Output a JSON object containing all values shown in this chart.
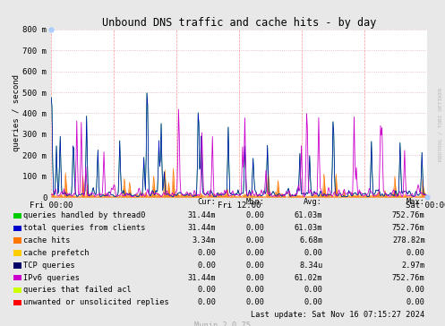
{
  "title": "Unbound DNS traffic and cache hits - by day",
  "ylabel": "queries / second",
  "background_color": "#e8e8e8",
  "plot_background": "#ffffff",
  "ytick_labels": [
    "0",
    "100 m",
    "200 m",
    "300 m",
    "400 m",
    "500 m",
    "600 m",
    "700 m",
    "800 m"
  ],
  "ytick_values": [
    0,
    100,
    200,
    300,
    400,
    500,
    600,
    700,
    800
  ],
  "xtick_labels": [
    "Fri 00:00",
    "Fri 12:00",
    "Sat 00:00"
  ],
  "xtick_positions": [
    0.0,
    0.5,
    1.0
  ],
  "series": [
    {
      "label": "queries handled by thread0",
      "color": "#00cc00"
    },
    {
      "label": "total queries from clients",
      "color": "#0000cc"
    },
    {
      "label": "cache hits",
      "color": "#ff7700"
    },
    {
      "label": "cache prefetch",
      "color": "#ffcc00"
    },
    {
      "label": "TCP queries",
      "color": "#000066"
    },
    {
      "label": "IPv6 queries",
      "color": "#cc00cc"
    },
    {
      "label": "queries that failed acl",
      "color": "#ccff00"
    },
    {
      "label": "unwanted or unsolicited replies",
      "color": "#ff0000"
    }
  ],
  "legend_stats": [
    {
      "cur": "31.44m",
      "min": "0.00",
      "avg": "61.03m",
      "max": "752.76m"
    },
    {
      "cur": "31.44m",
      "min": "0.00",
      "avg": "61.03m",
      "max": "752.76m"
    },
    {
      "cur": "3.34m",
      "min": "0.00",
      "avg": "6.68m",
      "max": "278.82m"
    },
    {
      "cur": "0.00",
      "min": "0.00",
      "avg": "0.00",
      "max": "0.00"
    },
    {
      "cur": "0.00",
      "min": "0.00",
      "avg": "8.34u",
      "max": "2.97m"
    },
    {
      "cur": "31.44m",
      "min": "0.00",
      "avg": "61.02m",
      "max": "752.76m"
    },
    {
      "cur": "0.00",
      "min": "0.00",
      "avg": "0.00",
      "max": "0.00"
    },
    {
      "cur": "0.00",
      "min": "0.00",
      "avg": "0.00",
      "max": "0.00"
    }
  ],
  "last_update": "Last update: Sat Nov 16 07:15:27 2024",
  "munin_version": "Munin 2.0.75",
  "rrdtool_label": "RRDTOOL / TOBI OETIKER",
  "ylim": [
    0,
    800
  ],
  "xlim": [
    0.0,
    1.0
  ]
}
